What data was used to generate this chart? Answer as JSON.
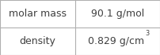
{
  "rows": [
    [
      "molar mass",
      "90.1 g/mol"
    ],
    [
      "density",
      "0.829 g/cm³"
    ]
  ],
  "background_color": "#ffffff",
  "border_color": "#b0b0b0",
  "text_color": "#404040",
  "font_size": 9,
  "fig_width": 2.02,
  "fig_height": 0.7,
  "dpi": 100,
  "col_split": 0.47,
  "density_base": "0.829 g/cm",
  "density_sup": "3"
}
